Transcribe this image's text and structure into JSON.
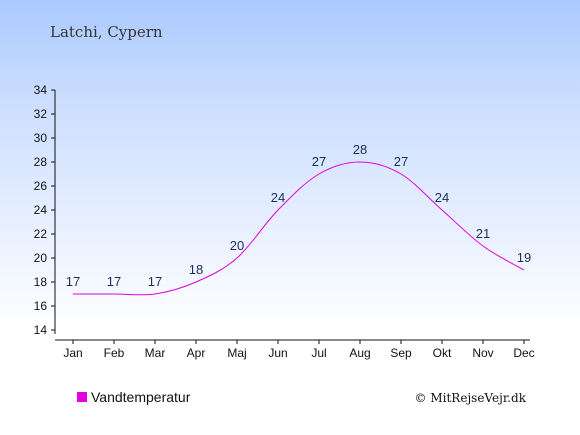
{
  "chart_data": {
    "type": "line",
    "title": "Latchi, Cypern",
    "categories": [
      "Jan",
      "Feb",
      "Mar",
      "Apr",
      "Maj",
      "Jun",
      "Jul",
      "Aug",
      "Sep",
      "Okt",
      "Nov",
      "Dec"
    ],
    "series": [
      {
        "name": "Vandtemperatur",
        "values": [
          17,
          17,
          17,
          18,
          20,
          24,
          27,
          28,
          27,
          24,
          21,
          19
        ],
        "color": "#e000e0"
      }
    ],
    "ylim": [
      14,
      34
    ],
    "yticks": [
      14,
      16,
      18,
      20,
      22,
      24,
      26,
      28,
      30,
      32,
      34
    ],
    "xlabel": "",
    "ylabel": "",
    "grid": false,
    "legend": "bottom-left"
  },
  "footer": {
    "credit": "© MitRejseVejr.dk"
  }
}
